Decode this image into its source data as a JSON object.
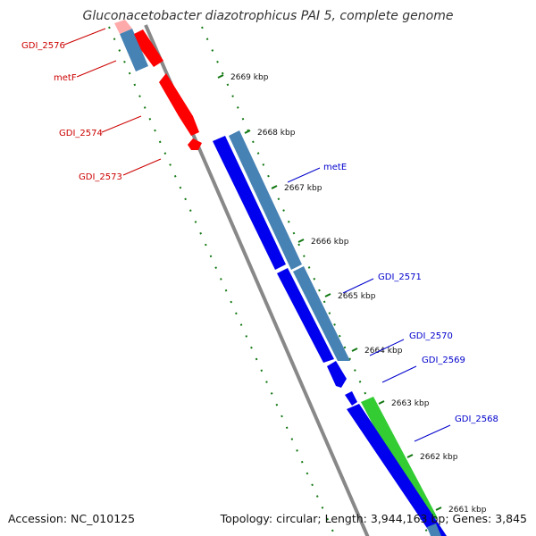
{
  "title": "Gluconacetobacter diazotrophicus PAI 5, complete genome",
  "footer": {
    "accession": "Accession: NC_010125",
    "topology": "Topology: circular; Length: 3,944,163 bp; Genes: 3,845"
  },
  "colors": {
    "backbone": "#888888",
    "reverse_gene": "#ff0000",
    "forward_gene": "#0000ee",
    "cds_blue": "#4682b4",
    "cds_green": "#33cc33",
    "reverse_label": "#cc0000",
    "forward_label": "#0000cc",
    "tick": "#117711"
  },
  "ticks": [
    {
      "label": "2669 kbp"
    },
    {
      "label": "2668 kbp"
    },
    {
      "label": "2667 kbp"
    },
    {
      "label": "2666 kbp"
    },
    {
      "label": "2665 kbp"
    },
    {
      "label": "2664 kbp"
    },
    {
      "label": "2663 kbp"
    },
    {
      "label": "2662 kbp"
    },
    {
      "label": "2661 kbp"
    }
  ],
  "reverse_labels": [
    {
      "text": "GDI_2576"
    },
    {
      "text": "metF"
    },
    {
      "text": "GDI_2574"
    },
    {
      "text": "GDI_2573"
    }
  ],
  "forward_labels": [
    {
      "text": "metE"
    },
    {
      "text": "GDI_2571"
    },
    {
      "text": "GDI_2570"
    },
    {
      "text": "GDI_2569"
    },
    {
      "text": "GDI_2568"
    }
  ]
}
